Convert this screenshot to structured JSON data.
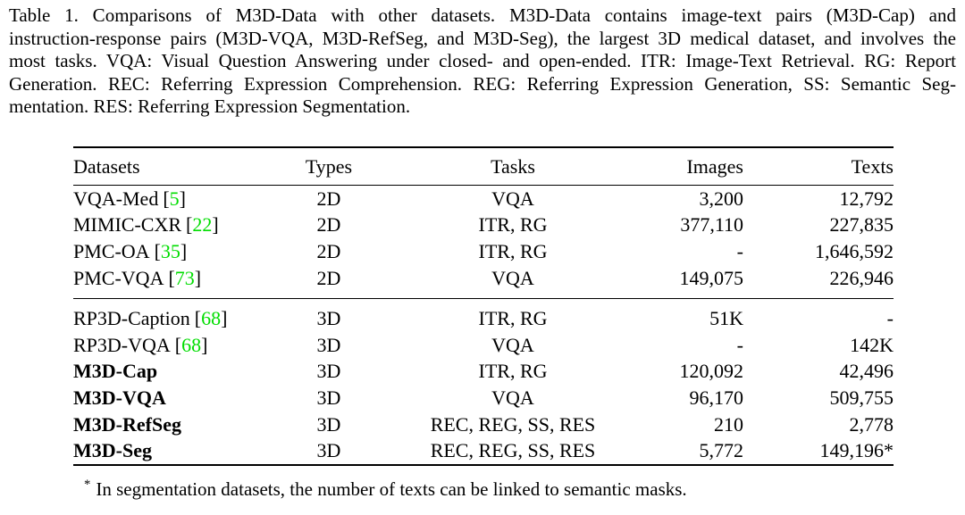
{
  "caption": {
    "lines": [
      "Table 1. Comparisons of M3D-Data with other datasets. M3D-Data contains image-text pairs (M3D-Cap) and",
      "instruction-response pairs (M3D-VQA, M3D-RefSeg, and M3D-Seg), the largest 3D medical dataset, and involves the",
      "most tasks. VQA: Visual Question Answering under closed- and open-ended. ITR: Image-Text Retrieval. RG: Report",
      "Generation. REC: Referring Expression Comprehension. REG: Referring Expression Generation, SS: Semantic Seg-",
      "mentation. RES: Referring Expression Segmentation."
    ]
  },
  "table": {
    "columns": [
      "Datasets",
      "Types",
      "Tasks",
      "Images",
      "Texts"
    ],
    "rows": [
      {
        "dataset": "VQA-Med",
        "cite_open": "[",
        "cite": "5",
        "cite_close": "]",
        "type": "2D",
        "tasks": "VQA",
        "images": "3,200",
        "texts": "12,792"
      },
      {
        "dataset": "MIMIC-CXR",
        "cite_open": "[",
        "cite": "22",
        "cite_close": "]",
        "type": "2D",
        "tasks": "ITR, RG",
        "images": "377,110",
        "texts": "227,835"
      },
      {
        "dataset": "PMC-OA",
        "cite_open": "[",
        "cite": "35",
        "cite_close": "]",
        "type": "2D",
        "tasks": "ITR, RG",
        "images": "-",
        "texts": "1,646,592"
      },
      {
        "dataset": "PMC-VQA",
        "cite_open": "[",
        "cite": "73",
        "cite_close": "]",
        "type": "2D",
        "tasks": "VQA",
        "images": "149,075",
        "texts": "226,946"
      },
      {
        "dataset": "RP3D-Caption",
        "cite_open": "[",
        "cite": "68",
        "cite_close": "]",
        "type": "3D",
        "tasks": "ITR, RG",
        "images": "51K",
        "texts": "-"
      },
      {
        "dataset": "RP3D-VQA",
        "cite_open": "[",
        "cite": "68",
        "cite_close": "]",
        "type": "3D",
        "tasks": "VQA",
        "images": "-",
        "texts": "142K"
      },
      {
        "dataset": "M3D-Cap",
        "type": "3D",
        "tasks": "ITR, RG",
        "images": "120,092",
        "texts": "42,496"
      },
      {
        "dataset": "M3D-VQA",
        "type": "3D",
        "tasks": "VQA",
        "images": "96,170",
        "texts": "509,755"
      },
      {
        "dataset": "M3D-RefSeg",
        "type": "3D",
        "tasks": "REC, REG, SS, RES",
        "images": "210",
        "texts": "2,778"
      },
      {
        "dataset": "M3D-Seg",
        "type": "3D",
        "tasks": "REC, REG, SS, RES",
        "images": "5,772",
        "texts": "149,196*"
      }
    ]
  },
  "footnote": {
    "marker": "*",
    "text": "In segmentation datasets, the number of texts can be linked to semantic masks."
  },
  "colors": {
    "citation_green": "#00dd00",
    "text": "#000000",
    "background": "#ffffff"
  }
}
